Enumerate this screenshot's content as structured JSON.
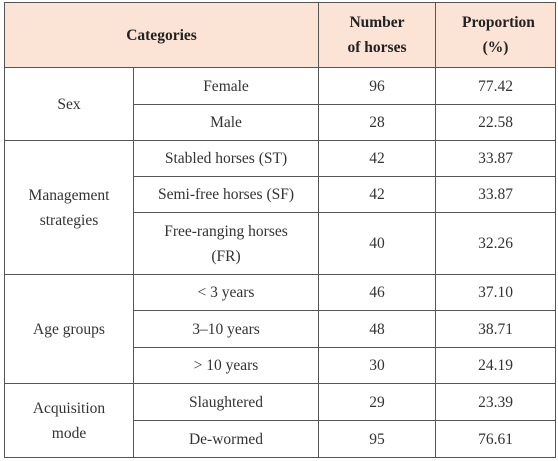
{
  "table": {
    "header": {
      "categories": "Categories",
      "number": "Number of horses",
      "proportion": "Proportion (%)"
    },
    "groups": [
      {
        "label": "Sex",
        "rows": [
          {
            "name": "Female",
            "number": "96",
            "proportion": "77.42"
          },
          {
            "name": "Male",
            "number": "28",
            "proportion": "22.58"
          }
        ]
      },
      {
        "label": "Management strategies",
        "rows": [
          {
            "name": "Stabled horses (ST)",
            "number": "42",
            "proportion": "33.87"
          },
          {
            "name": "Semi-free horses (SF)",
            "number": "42",
            "proportion": "33.87"
          },
          {
            "name": "Free-ranging horses (FR)",
            "number": "40",
            "proportion": "32.26"
          }
        ]
      },
      {
        "label": "Age groups",
        "rows": [
          {
            "name": "< 3 years",
            "number": "46",
            "proportion": "37.10"
          },
          {
            "name": "3–10 years",
            "number": "48",
            "proportion": "38.71"
          },
          {
            "name": "> 10 years",
            "number": "30",
            "proportion": "24.19"
          }
        ]
      },
      {
        "label": "Acquisition mode",
        "rows": [
          {
            "name": "Slaughtered",
            "number": "29",
            "proportion": "23.39"
          },
          {
            "name": "De-wormed",
            "number": "95",
            "proportion": "76.61"
          }
        ]
      }
    ]
  }
}
